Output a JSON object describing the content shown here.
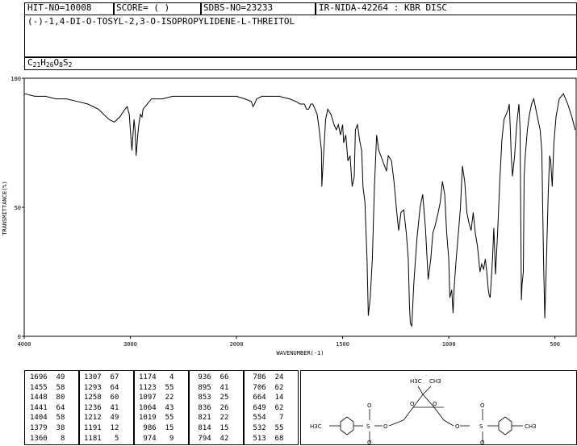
{
  "header": {
    "hit_no": "HIT-NO=10008",
    "score": "SCORE=  (   )",
    "sdbs_no": "SDBS-NO=23233",
    "ir_id": "IR-NIDA-42264 : KBR DISC",
    "compound_name": "(-)-1,4-DI-O-TOSYL-2,3-O-ISOPROPYLIDENE-L-THREITOL",
    "formula_parts": [
      {
        "t": "C",
        "sub": false
      },
      {
        "t": "21",
        "sub": true
      },
      {
        "t": "H",
        "sub": false
      },
      {
        "t": "26",
        "sub": true
      },
      {
        "t": "O",
        "sub": false
      },
      {
        "t": "8",
        "sub": true
      },
      {
        "t": "S",
        "sub": false
      },
      {
        "t": "2",
        "sub": true
      }
    ]
  },
  "chart_data": {
    "type": "line",
    "title": "",
    "xlabel": "WAVENUMBER(-1)",
    "ylabel": "TRANSMITTANCE(%)",
    "xlim": [
      4000,
      400
    ],
    "ylim": [
      0,
      100
    ],
    "x_ticks": [
      4000,
      3000,
      2000,
      1500,
      1000,
      500
    ],
    "x_tick_labels": [
      "4000",
      "3000",
      "2000",
      "1500",
      "1000",
      "500"
    ],
    "y_ticks": [
      0,
      50,
      100
    ],
    "y_tick_labels": [
      "0",
      "50",
      "100"
    ],
    "grid": false,
    "series": [
      {
        "x": [
          4000,
          3900,
          3800,
          3700,
          3600,
          3500,
          3400,
          3300,
          3250,
          3200,
          3150,
          3100,
          3050,
          3030,
          3010,
          3000,
          2985,
          2975,
          2965,
          2955,
          2945,
          2930,
          2920,
          2905,
          2890,
          2880,
          2860,
          2840,
          2800,
          2700,
          2600,
          2500,
          2400,
          2300,
          2200,
          2100,
          2000,
          1960,
          1930,
          1922,
          1915,
          1905,
          1880,
          1800,
          1750,
          1720,
          1700,
          1680,
          1670,
          1660,
          1650,
          1640,
          1630,
          1620,
          1610,
          1600,
          1598,
          1590,
          1580,
          1570,
          1555,
          1540,
          1530,
          1520,
          1510,
          1500,
          1495,
          1485,
          1475,
          1465,
          1455,
          1445,
          1440,
          1430,
          1420,
          1410,
          1404,
          1395,
          1385,
          1379,
          1370,
          1360,
          1350,
          1340,
          1330,
          1320,
          1307,
          1293,
          1285,
          1270,
          1258,
          1245,
          1236,
          1225,
          1212,
          1200,
          1191,
          1185,
          1181,
          1174,
          1165,
          1150,
          1135,
          1123,
          1110,
          1097,
          1085,
          1075,
          1064,
          1050,
          1040,
          1030,
          1019,
          1010,
          1000,
          995,
          986,
          980,
          974,
          965,
          955,
          945,
          936,
          925,
          915,
          905,
          895,
          885,
          875,
          865,
          853,
          845,
          836,
          828,
          821,
          818,
          814,
          810,
          805,
          800,
          794,
          788,
          786,
          780,
          770,
          760,
          750,
          740,
          730,
          720,
          715,
          710,
          706,
          700,
          690,
          680,
          670,
          664,
          658,
          655,
          649,
          645,
          640,
          630,
          620,
          610,
          600,
          590,
          580,
          570,
          562,
          554,
          548,
          540,
          532,
          525,
          520,
          513,
          505,
          495,
          480,
          460,
          440,
          420,
          405
        ],
        "y": [
          94,
          93,
          93,
          92,
          92,
          91,
          90,
          88,
          86,
          84,
          83,
          85,
          88,
          89,
          86,
          80,
          72,
          78,
          84,
          80,
          70,
          78,
          82,
          86,
          85,
          88,
          89,
          90,
          92,
          92,
          93,
          93,
          93,
          93,
          93,
          93,
          93,
          92,
          91,
          89,
          90,
          92,
          93,
          93,
          92,
          91,
          90,
          90,
          88,
          88,
          90,
          90,
          88,
          86,
          80,
          72,
          58,
          70,
          84,
          88,
          86,
          82,
          80,
          82,
          78,
          82,
          75,
          78,
          68,
          70,
          58,
          62,
          80,
          82,
          76,
          72,
          58,
          52,
          30,
          8,
          15,
          30,
          58,
          78,
          72,
          70,
          67,
          64,
          70,
          68,
          60,
          48,
          41,
          48,
          49,
          40,
          30,
          12,
          5,
          4,
          20,
          38,
          50,
          55,
          42,
          22,
          30,
          40,
          43,
          48,
          52,
          60,
          55,
          40,
          30,
          15,
          18,
          9,
          20,
          30,
          40,
          50,
          66,
          60,
          48,
          44,
          41,
          48,
          40,
          35,
          25,
          28,
          26,
          30,
          25,
          22,
          18,
          16,
          15,
          22,
          30,
          42,
          38,
          24,
          40,
          60,
          76,
          84,
          86,
          88,
          90,
          80,
          70,
          62,
          70,
          82,
          90,
          80,
          14,
          20,
          25,
          62,
          70,
          80,
          86,
          90,
          92,
          88,
          84,
          80,
          72,
          30,
          7,
          30,
          55,
          70,
          68,
          58,
          75,
          85,
          92,
          94,
          90,
          85,
          80
        ]
      }
    ]
  },
  "peak_table": {
    "columns": [
      [
        [
          "1696",
          "49"
        ],
        [
          "1455",
          "58"
        ],
        [
          "1448",
          "80"
        ],
        [
          "1441",
          "64"
        ],
        [
          "1404",
          "58"
        ],
        [
          "1379",
          "38"
        ],
        [
          "1360",
          "8"
        ]
      ],
      [
        [
          "1307",
          "67"
        ],
        [
          "1293",
          "64"
        ],
        [
          "1258",
          "60"
        ],
        [
          "1236",
          "41"
        ],
        [
          "1212",
          "49"
        ],
        [
          "1191",
          "12"
        ],
        [
          "1181",
          "5"
        ]
      ],
      [
        [
          "1174",
          "4"
        ],
        [
          "1123",
          "55"
        ],
        [
          "1097",
          "22"
        ],
        [
          "1064",
          "43"
        ],
        [
          "1019",
          "55"
        ],
        [
          "986",
          "15"
        ],
        [
          "974",
          "9"
        ]
      ],
      [
        [
          "936",
          "66"
        ],
        [
          "895",
          "41"
        ],
        [
          "853",
          "25"
        ],
        [
          "836",
          "26"
        ],
        [
          "821",
          "22"
        ],
        [
          "814",
          "15"
        ],
        [
          "794",
          "42"
        ]
      ],
      [
        [
          "786",
          "24"
        ],
        [
          "706",
          "62"
        ],
        [
          "664",
          "14"
        ],
        [
          "649",
          "62"
        ],
        [
          "554",
          "7"
        ],
        [
          "532",
          "55"
        ],
        [
          "513",
          "68"
        ]
      ]
    ]
  },
  "structure": {
    "label_h3c_top": "H3C",
    "label_ch3_top": "CH3",
    "label_h3c_left": "H3C",
    "label_ch3_right": "CH3",
    "atom_o": "O",
    "atom_s": "S"
  }
}
